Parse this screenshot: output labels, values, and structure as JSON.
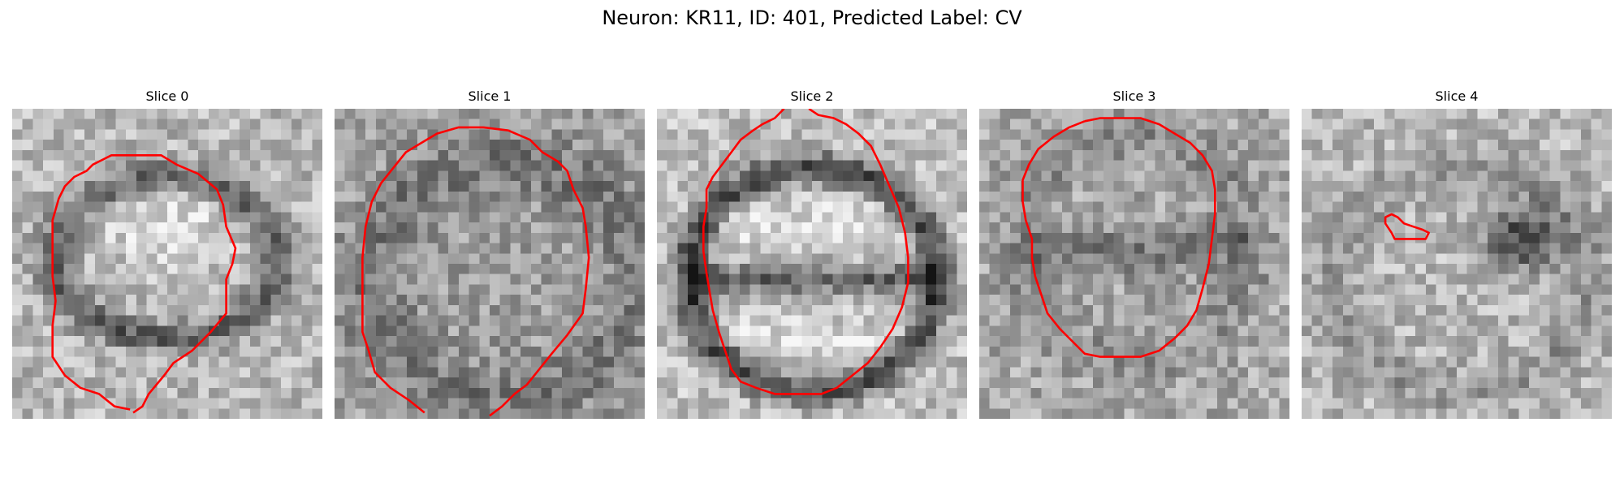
{
  "figure": {
    "title": "Neuron: KR11, ID: 401, Predicted Label: CV"
  },
  "colors": {
    "contour": "#ff0000",
    "background": "#ffffff"
  },
  "panels": [
    {
      "title": "Slice 0"
    },
    {
      "title": "Slice 1"
    },
    {
      "title": "Slice 2"
    },
    {
      "title": "Slice 3"
    },
    {
      "title": "Slice 4"
    }
  ]
}
